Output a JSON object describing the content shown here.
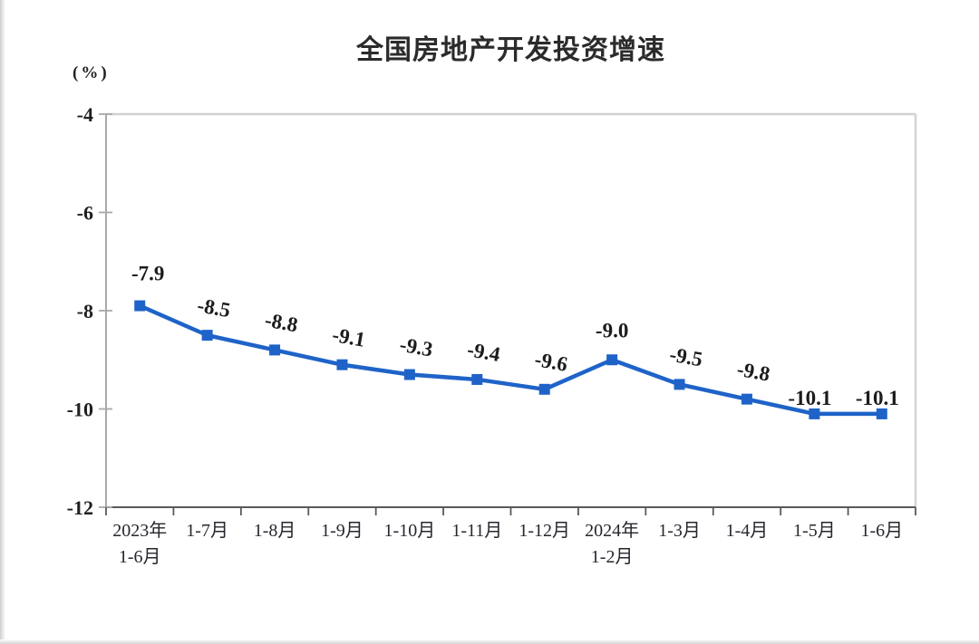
{
  "chart_data": {
    "type": "line",
    "title": "全国房地产开发投资增速",
    "unit_label": "(%)",
    "categories": [
      "2023年\n1-6月",
      "1-7月",
      "1-8月",
      "1-9月",
      "1-10月",
      "1-11月",
      "1-12月",
      "2024年\n1-2月",
      "1-3月",
      "1-4月",
      "1-5月",
      "1-6月"
    ],
    "series": [
      {
        "name": "全国房地产开发投资增速",
        "values": [
          -7.9,
          -8.5,
          -8.8,
          -9.1,
          -9.3,
          -9.4,
          -9.6,
          -9.0,
          -9.5,
          -9.8,
          -10.1,
          -10.1
        ]
      }
    ],
    "data_labels": [
      "-7.9",
      "-8.5",
      "-8.8",
      "-9.1",
      "-9.3",
      "-9.4",
      "-9.6",
      "-9.0",
      "-9.5",
      "-9.8",
      "-10.1",
      "-10.1"
    ],
    "y_tick_labels": [
      "-4",
      "-6",
      "-8",
      "-10",
      "-12"
    ],
    "ylim": [
      -12,
      -4
    ],
    "xlabel": "",
    "ylabel": "(%)",
    "grid": "off",
    "legend": "none",
    "line_color": "#1f63c8",
    "marker": "square",
    "marker_color": "#1f63c8"
  }
}
